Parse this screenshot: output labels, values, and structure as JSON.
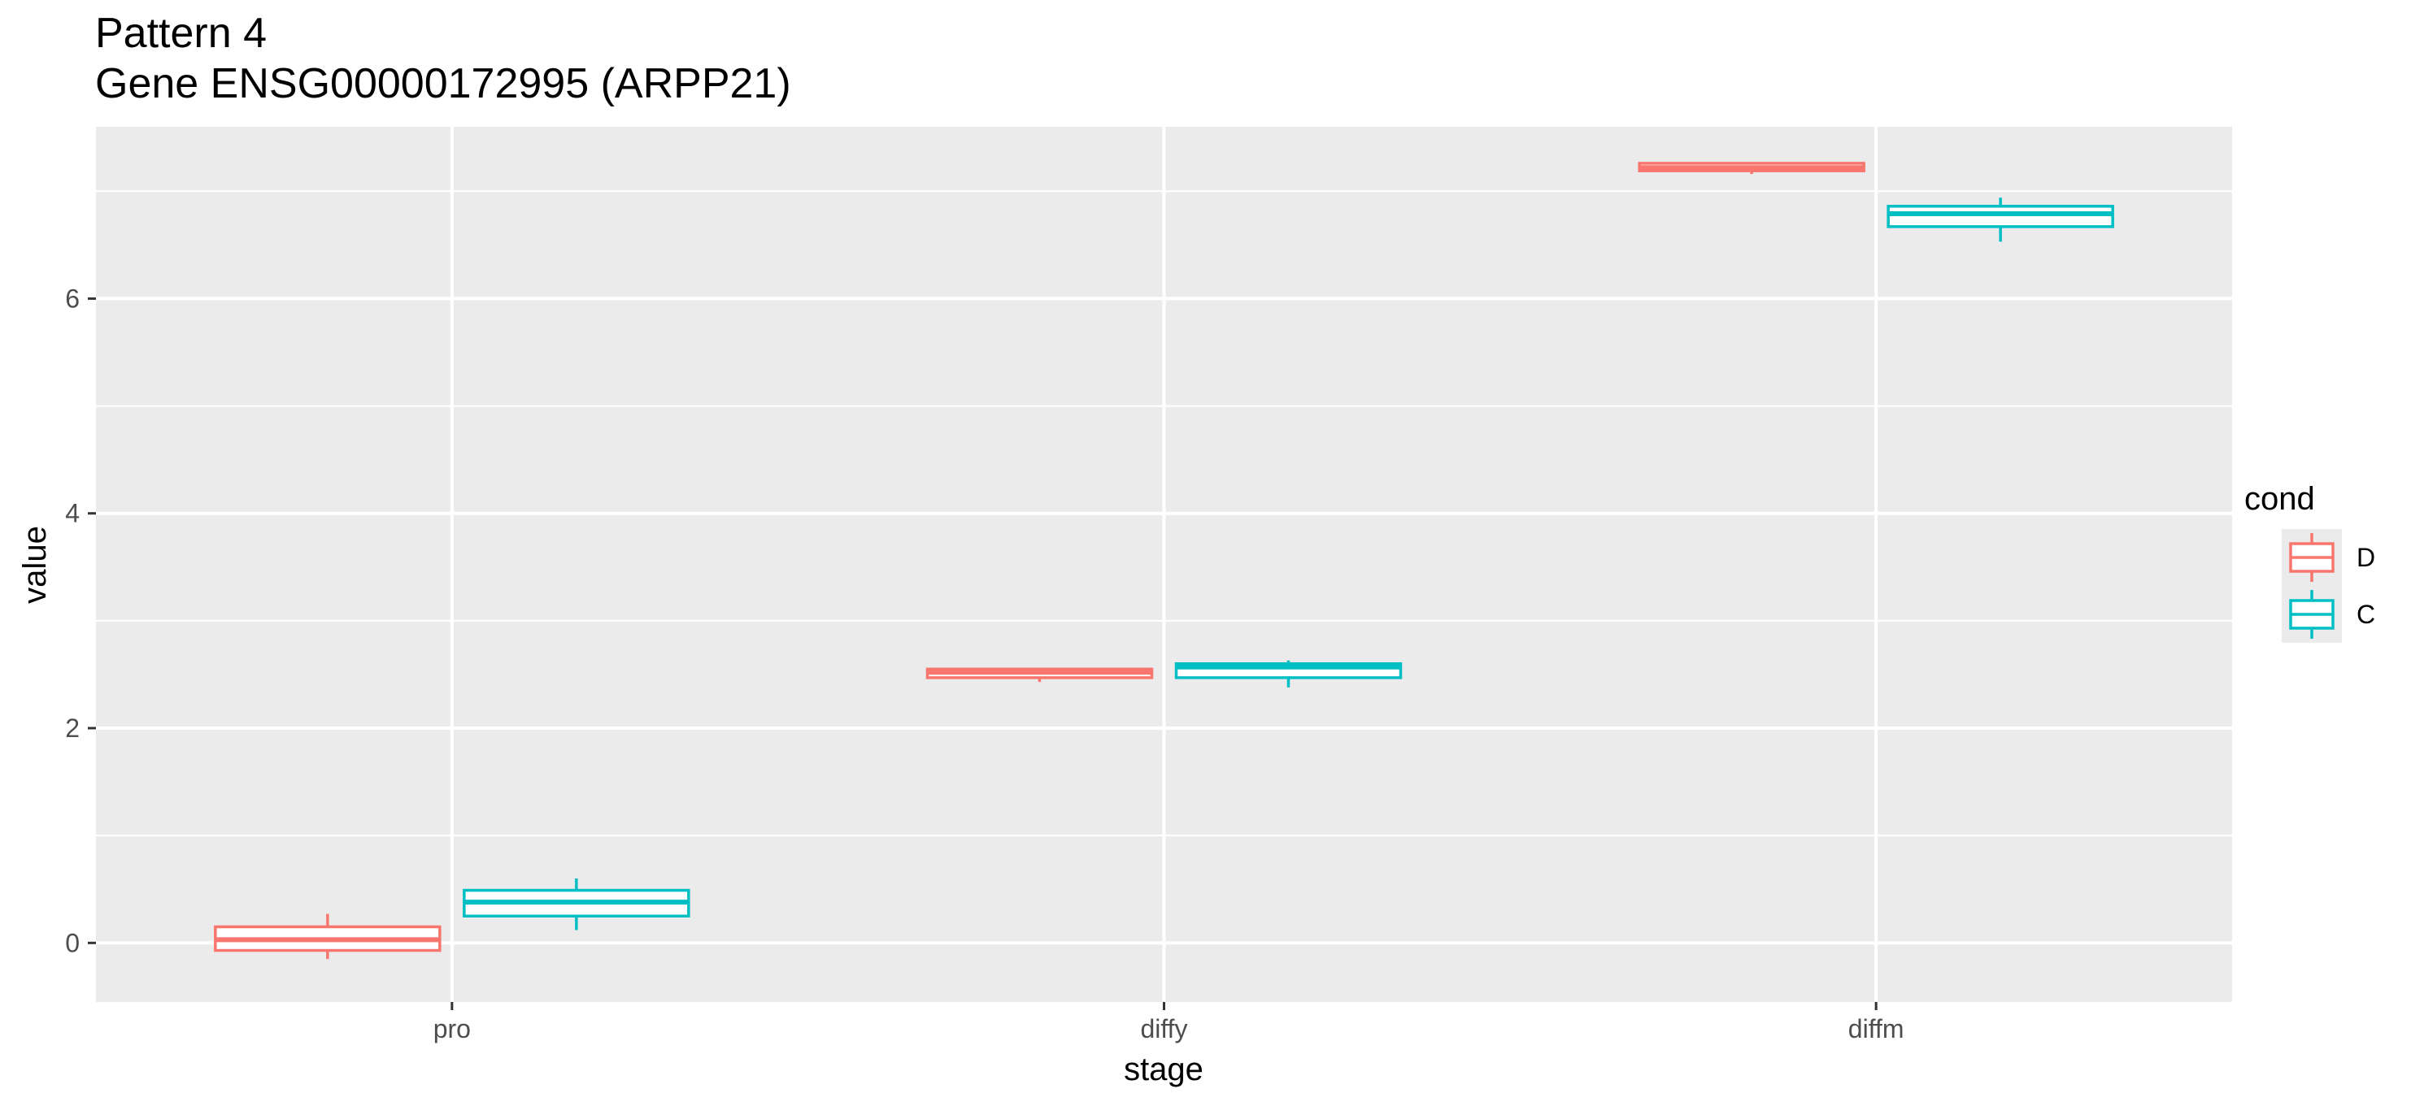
{
  "chart_data": {
    "type": "boxplot",
    "title": "Pattern 4",
    "subtitle": "Gene ENSG00000172995 (ARPP21)",
    "xlabel": "stage",
    "ylabel": "value",
    "categories": [
      "pro",
      "diffy",
      "diffm"
    ],
    "ylim": [
      -0.55,
      7.6
    ],
    "yticks": [
      0,
      2,
      4,
      6
    ],
    "yticklabels": [
      "0",
      "2",
      "4",
      "6"
    ],
    "grid": true,
    "legend": {
      "title": "cond",
      "placement": "right",
      "entries": [
        "D",
        "C"
      ]
    },
    "series": [
      {
        "name": "D",
        "color": "#F8766D",
        "boxes": [
          {
            "category": "pro",
            "min": -0.15,
            "q1": -0.07,
            "median": 0.03,
            "q3": 0.15,
            "max": 0.27
          },
          {
            "category": "diffy",
            "min": 2.43,
            "q1": 2.47,
            "median": 2.52,
            "q3": 2.55,
            "max": 2.56
          },
          {
            "category": "diffm",
            "min": 7.16,
            "q1": 7.19,
            "median": 7.22,
            "q3": 7.26,
            "max": 7.27
          }
        ]
      },
      {
        "name": "C",
        "color": "#00BFC4",
        "boxes": [
          {
            "category": "pro",
            "min": 0.12,
            "q1": 0.25,
            "median": 0.38,
            "q3": 0.49,
            "max": 0.6
          },
          {
            "category": "diffy",
            "min": 2.38,
            "q1": 2.47,
            "median": 2.57,
            "q3": 2.6,
            "max": 2.63
          },
          {
            "category": "diffm",
            "min": 6.53,
            "q1": 6.67,
            "median": 6.79,
            "q3": 6.86,
            "max": 6.94
          }
        ]
      }
    ]
  }
}
